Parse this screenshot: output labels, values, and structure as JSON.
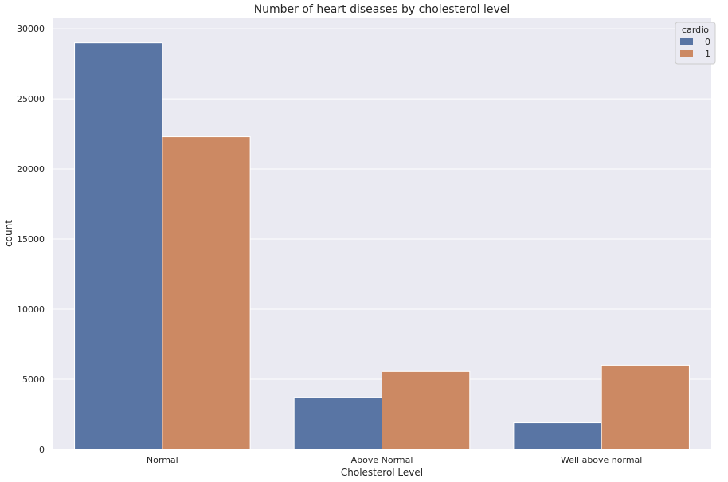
{
  "chart_data": {
    "type": "bar",
    "title": "Number of heart diseases by cholesterol level",
    "xlabel": "Cholesterol Level",
    "ylabel": "count",
    "categories": [
      "Normal",
      "Above Normal",
      "Well above normal"
    ],
    "series": [
      {
        "name": "0",
        "values": [
          29000,
          3700,
          1900
        ],
        "color": "#5975a4"
      },
      {
        "name": "1",
        "values": [
          22300,
          5550,
          6000
        ],
        "color": "#cc8963"
      }
    ],
    "ylim": [
      0,
      30800
    ],
    "yticks": [
      0,
      5000,
      10000,
      15000,
      20000,
      25000,
      30000
    ],
    "legend": {
      "title": "cardio",
      "position": "top-right"
    },
    "grid": true,
    "background": "#eaeaf2"
  }
}
